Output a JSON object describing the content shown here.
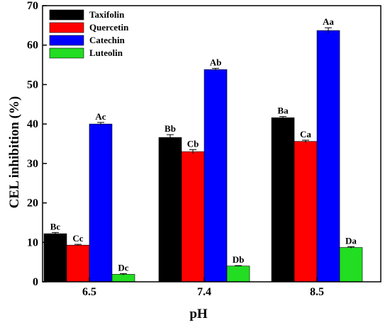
{
  "chart_data": {
    "type": "bar",
    "xlabel": "pH",
    "ylabel": "CEL inhibition (%)",
    "ylim": [
      0,
      70
    ],
    "yticks": [
      0,
      10,
      20,
      30,
      40,
      50,
      60,
      70
    ],
    "categories": [
      "6.5",
      "7.4",
      "8.5"
    ],
    "legend_position": "top-left",
    "grid": false,
    "series": [
      {
        "name": "Taxifolin",
        "color": "#000000",
        "values": [
          12.2,
          36.6,
          41.6
        ],
        "errors": [
          0.3,
          0.7,
          0.3
        ],
        "labels": [
          "Bc",
          "Bb",
          "Ba"
        ]
      },
      {
        "name": "Quercetin",
        "color": "#ff0000",
        "values": [
          9.3,
          33.0,
          35.6
        ],
        "errors": [
          0.2,
          0.5,
          0.3
        ],
        "labels": [
          "Cc",
          "Cb",
          "Ca"
        ]
      },
      {
        "name": "Catechin",
        "color": "#0000ff",
        "values": [
          40.0,
          53.8,
          63.7
        ],
        "errors": [
          0.4,
          0.3,
          0.7
        ],
        "labels": [
          "Ac",
          "Ab",
          "Aa"
        ]
      },
      {
        "name": "Luteolin",
        "color": "#22dd22",
        "values": [
          1.9,
          4.0,
          8.7
        ],
        "errors": [
          0.2,
          0.1,
          0.2
        ],
        "labels": [
          "Dc",
          "Db",
          "Da"
        ]
      }
    ]
  }
}
